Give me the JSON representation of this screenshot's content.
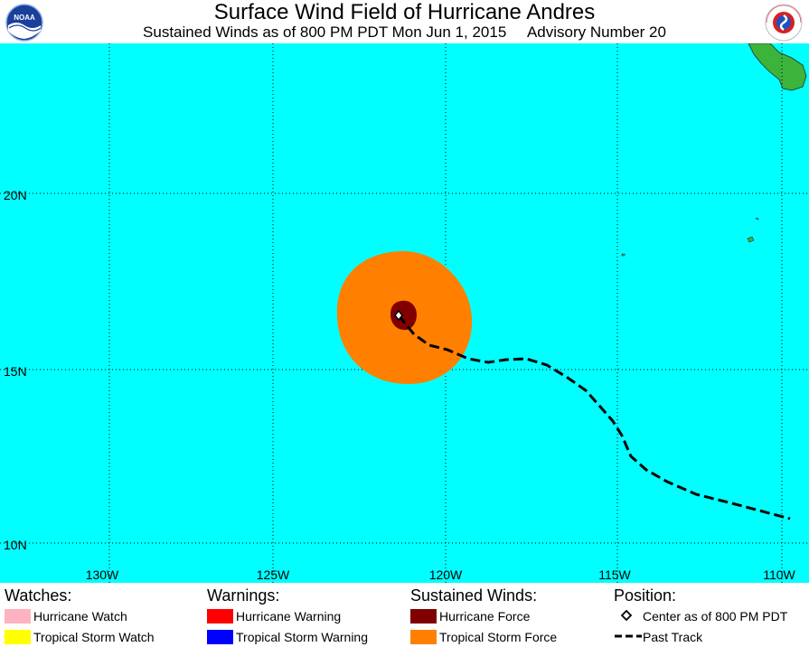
{
  "header": {
    "title": "Surface Wind Field of Hurricane Andres",
    "subtitle": "Sustained Winds as of 800 PM PDT Mon Jun 1, 2015     Advisory Number 20",
    "left_logo": "NOAA",
    "right_logo": "NATIONAL WEATHER SERVICE"
  },
  "map": {
    "ocean_color": "#00FFFF",
    "land_color": "#3CB43C",
    "grid_style": "dotted",
    "lat_labels": [
      "20N",
      "15N",
      "10N"
    ],
    "lon_labels": [
      "130W",
      "125W",
      "120W",
      "115W",
      "110W"
    ],
    "center_lon": -121.3,
    "center_lat": 16.6,
    "tropical_storm_force_color": "#FF8000",
    "hurricane_force_color": "#800000"
  },
  "legend": {
    "watches": {
      "heading": "Watches:",
      "items": [
        {
          "label": "Hurricane Watch",
          "color": "#FFB3C1"
        },
        {
          "label": "Tropical Storm Watch",
          "color": "#FFFF00"
        }
      ]
    },
    "warnings": {
      "heading": "Warnings:",
      "items": [
        {
          "label": "Hurricane Warning",
          "color": "#FF0000"
        },
        {
          "label": "Tropical Storm Warning",
          "color": "#0000FF"
        }
      ]
    },
    "winds": {
      "heading": "Sustained Winds:",
      "items": [
        {
          "label": "Hurricane Force",
          "color": "#800000"
        },
        {
          "label": "Tropical Storm Force",
          "color": "#FF8000"
        }
      ]
    },
    "position": {
      "heading": "Position:",
      "center_label": "Center as of 800 PM PDT",
      "track_label": "Past Track"
    }
  }
}
